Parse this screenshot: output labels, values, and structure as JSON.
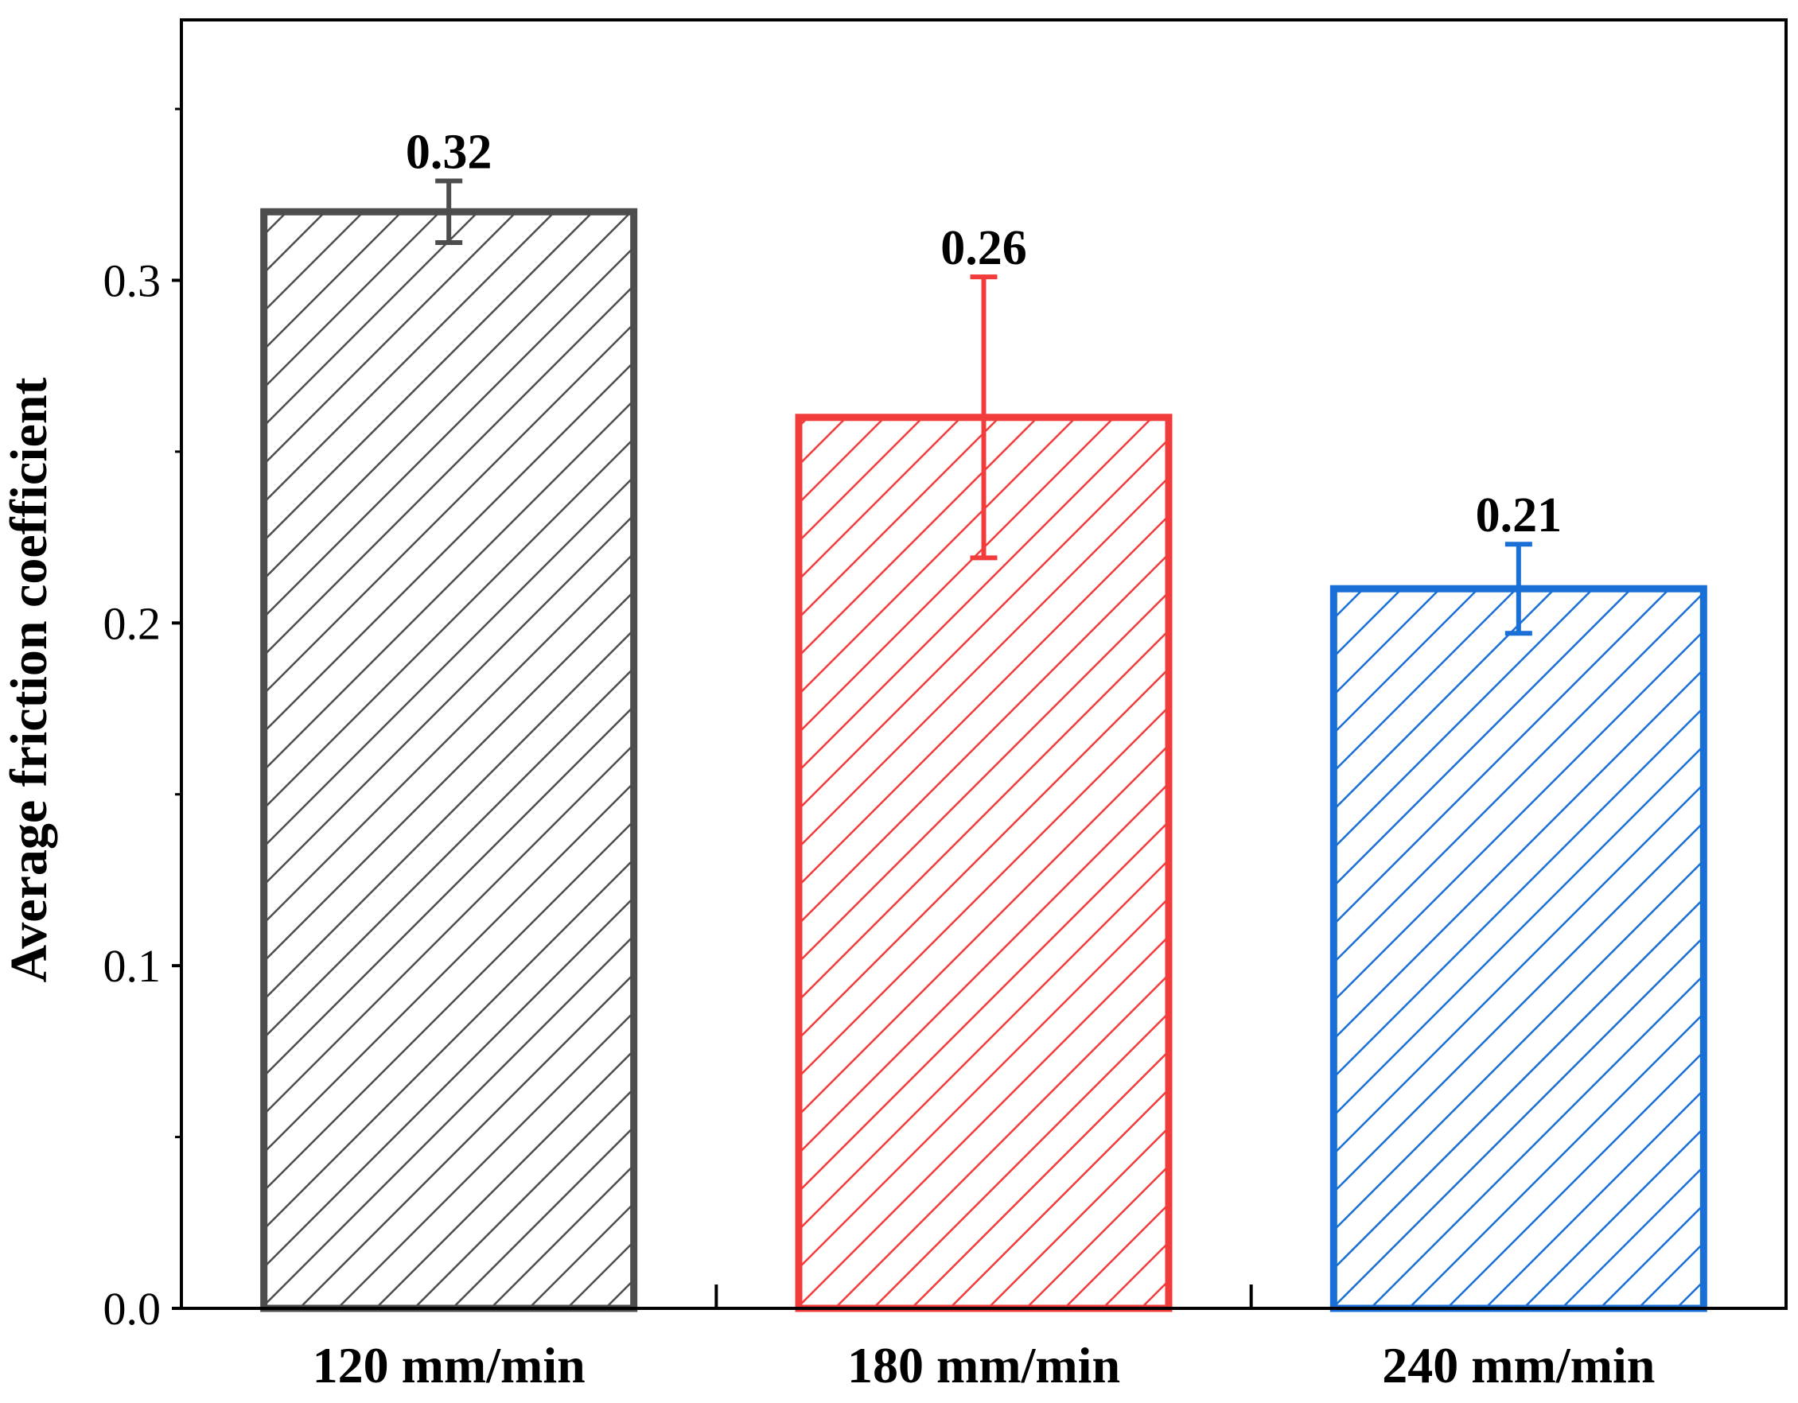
{
  "chart_data": {
    "type": "bar",
    "title": "",
    "xlabel": "",
    "ylabel": "Average friction coefficient",
    "categories": [
      "120 mm/min",
      "180 mm/min",
      "240 mm/min"
    ],
    "values": [
      0.32,
      0.26,
      0.21
    ],
    "value_labels": [
      "0.32",
      "0.26",
      "0.21"
    ],
    "error": [
      0.009,
      0.041,
      0.013
    ],
    "colors": [
      "#4d4d4d",
      "#f23c3c",
      "#1a6fd6"
    ],
    "fill_pattern": "diagonal-hatch",
    "ylim": [
      0,
      0.376
    ],
    "yticks": [
      0.0,
      0.1,
      0.2,
      0.3
    ],
    "ytick_labels": [
      "0.0",
      "0.1",
      "0.2",
      "0.3"
    ],
    "minor_yticks": [
      0.05,
      0.15,
      0.25,
      0.35
    ],
    "grid": false,
    "legend": "none"
  }
}
